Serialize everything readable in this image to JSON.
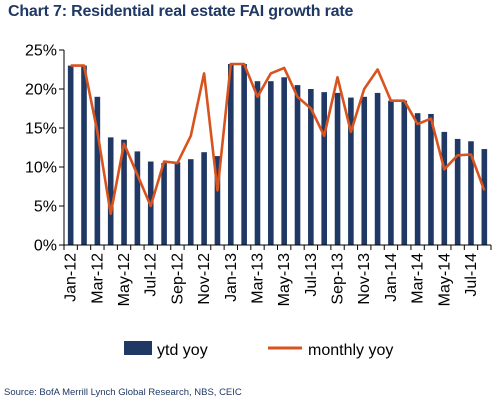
{
  "title": "Chart 7: Residential  real estate  FAI growth rate",
  "source": "Source: BofA Merrill Lynch Global Research, NBS, CEIC",
  "colors": {
    "ytd": "#1f3864",
    "monthly": "#d9531e",
    "axis": "#000000"
  },
  "chart_data": {
    "type": "bar",
    "title": "Chart 7: Residential  real estate  FAI growth rate",
    "xlabel": "",
    "ylabel": "",
    "ylim": [
      0,
      25
    ],
    "yticks": [
      "0%",
      "5%",
      "10%",
      "15%",
      "20%",
      "25%"
    ],
    "grid": false,
    "legend_position": "bottom",
    "categories": [
      "Jan-12",
      "Feb-12",
      "Mar-12",
      "Apr-12",
      "May-12",
      "Jun-12",
      "Jul-12",
      "Aug-12",
      "Sep-12",
      "Oct-12",
      "Nov-12",
      "Dec-12",
      "Jan-13",
      "Feb-13",
      "Mar-13",
      "Apr-13",
      "May-13",
      "Jun-13",
      "Jul-13",
      "Aug-13",
      "Sep-13",
      "Oct-13",
      "Nov-13",
      "Dec-13",
      "Jan-14",
      "Feb-14",
      "Mar-14",
      "Apr-14",
      "May-14",
      "Jun-14",
      "Jul-14",
      "Aug-14"
    ],
    "tick_labels": [
      "Jan-12",
      "Mar-12",
      "May-12",
      "Jul-12",
      "Sep-12",
      "Nov-12",
      "Jan-13",
      "Mar-13",
      "May-13",
      "Jul-13",
      "Sep-13",
      "Nov-13",
      "Jan-14",
      "Mar-14",
      "May-14",
      "Jul-14"
    ],
    "series": [
      {
        "name": "ytd yoy",
        "type": "bar",
        "values": [
          23.0,
          23.0,
          19.0,
          13.8,
          13.5,
          12.0,
          10.7,
          10.5,
          10.6,
          11.0,
          11.9,
          11.4,
          23.2,
          23.2,
          21.0,
          21.0,
          21.5,
          20.5,
          20.0,
          19.6,
          19.5,
          18.9,
          19.0,
          19.5,
          18.5,
          18.5,
          16.9,
          16.8,
          14.5,
          13.6,
          13.3,
          12.3
        ]
      },
      {
        "name": "monthly yoy",
        "type": "line",
        "values": [
          23.0,
          23.0,
          14.5,
          4.0,
          13.0,
          9.0,
          5.0,
          10.7,
          10.5,
          14.0,
          22.0,
          7.0,
          23.2,
          23.2,
          19.0,
          22.0,
          22.7,
          19.0,
          17.5,
          14.0,
          21.5,
          14.5,
          20.0,
          22.5,
          18.5,
          18.5,
          15.5,
          16.2,
          9.7,
          11.5,
          11.6,
          7.0
        ]
      }
    ]
  }
}
